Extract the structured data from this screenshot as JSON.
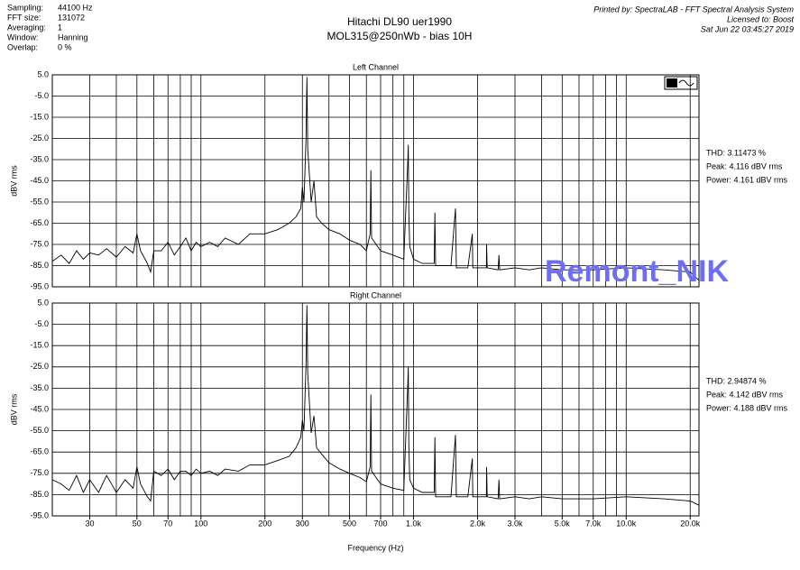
{
  "header": {
    "info_labels": [
      "Sampling:",
      "FFT size:",
      "Averaging:",
      "Window:",
      "Overlap:"
    ],
    "info_values": [
      "44100 Hz",
      "131072",
      "1",
      "Hanning",
      "0 %"
    ],
    "title": "Hitachi DL90 uer1990",
    "subtitle": "MOL315@250nWb - bias 10H",
    "printed_by": "Printed by: SpectraLAB - FFT Spectral Analysis System",
    "licensed": "Licensed to: Boost",
    "date": "Sat Jun 22 03:45:27 2019"
  },
  "watermark": "Remont_NIK",
  "chart_data": [
    {
      "type": "line",
      "title": "Left Channel",
      "ylabel": "dBV rms",
      "log_x": true,
      "grid": true,
      "annotations": [
        "THD: 3.11473 %",
        "Peak: 4.116 dBV rms",
        "Power: 4.161 dBV rms"
      ],
      "xlim": [
        20,
        22000
      ],
      "ylim": [
        -95,
        5
      ],
      "yticks": [
        {
          "value": 5,
          "label": "5.0"
        },
        {
          "value": -5,
          "label": "-5.0"
        },
        {
          "value": -15,
          "label": "-15.0"
        },
        {
          "value": -25,
          "label": "-25.0"
        },
        {
          "value": -35,
          "label": "-35.0"
        },
        {
          "value": -45,
          "label": "-45.0"
        },
        {
          "value": -55,
          "label": "-55.0"
        },
        {
          "value": -65,
          "label": "-65.0"
        },
        {
          "value": -75,
          "label": "-75.0"
        },
        {
          "value": -85,
          "label": "-85.0"
        },
        {
          "value": -95,
          "label": "-95.0"
        }
      ],
      "xgrid": [
        30,
        40,
        50,
        60,
        70,
        80,
        90,
        100,
        200,
        300,
        400,
        500,
        600,
        700,
        800,
        900,
        1000,
        2000,
        3000,
        4000,
        5000,
        6000,
        7000,
        8000,
        9000,
        10000,
        20000
      ],
      "x": [
        20,
        22,
        24,
        26,
        28,
        30,
        33,
        36,
        40,
        44,
        48,
        50,
        52,
        56,
        58,
        60,
        65,
        70,
        75,
        80,
        85,
        90,
        95,
        100,
        110,
        120,
        130,
        150,
        170,
        200,
        230,
        260,
        280,
        295,
        300,
        305,
        312,
        315,
        318,
        325,
        330,
        340,
        350,
        370,
        400,
        450,
        500,
        560,
        600,
        625,
        630,
        635,
        700,
        800,
        900,
        940,
        945,
        950,
        960,
        1000,
        1100,
        1250,
        1260,
        1270,
        1500,
        1575,
        1590,
        1800,
        1890,
        1900,
        2200,
        2205,
        2220,
        2500,
        2520,
        2540,
        3000,
        3500,
        4000,
        5000,
        7000,
        10000,
        15000,
        20000,
        22000
      ],
      "series": [
        {
          "name": "Left",
          "color": "#000000",
          "values": [
            -83,
            -80,
            -84,
            -78,
            -82,
            -79,
            -80,
            -77,
            -81,
            -76,
            -79,
            -70,
            -78,
            -84,
            -88,
            -78,
            -78,
            -74,
            -80,
            -76,
            -72,
            -78,
            -74,
            -76,
            -74,
            -76,
            -72,
            -75,
            -70,
            -70,
            -68,
            -65,
            -62,
            -58,
            -48,
            -55,
            -25,
            4,
            -30,
            -45,
            -55,
            -45,
            -62,
            -65,
            -68,
            -70,
            -73,
            -75,
            -78,
            -70,
            -40,
            -72,
            -78,
            -80,
            -82,
            -35,
            -28,
            -60,
            -76,
            -82,
            -84,
            -84,
            -60,
            -85,
            -85,
            -58,
            -86,
            -86,
            -70,
            -86,
            -86,
            -75,
            -86,
            -87,
            -80,
            -87,
            -86,
            -87,
            -86,
            -87,
            -87,
            -86,
            -87,
            -88,
            -92
          ]
        }
      ]
    },
    {
      "type": "line",
      "title": "Right Channel",
      "ylabel": "dBV rms",
      "xlabel": "Frequency (Hz)",
      "log_x": true,
      "grid": true,
      "annotations": [
        "THD: 2.94874 %",
        "Peak: 4.142 dBV rms",
        "Power: 4.188 dBV rms"
      ],
      "xlim": [
        20,
        22000
      ],
      "ylim": [
        -95,
        5
      ],
      "yticks": [
        {
          "value": 5,
          "label": "5.0"
        },
        {
          "value": -5,
          "label": "-5.0"
        },
        {
          "value": -15,
          "label": "-15.0"
        },
        {
          "value": -25,
          "label": "-25.0"
        },
        {
          "value": -35,
          "label": "-35.0"
        },
        {
          "value": -45,
          "label": "-45.0"
        },
        {
          "value": -55,
          "label": "-55.0"
        },
        {
          "value": -65,
          "label": "-65.0"
        },
        {
          "value": -75,
          "label": "-75.0"
        },
        {
          "value": -85,
          "label": "-85.0"
        },
        {
          "value": -95,
          "label": "-95.0"
        }
      ],
      "xgrid": [
        30,
        40,
        50,
        60,
        70,
        80,
        90,
        100,
        200,
        300,
        400,
        500,
        600,
        700,
        800,
        900,
        1000,
        2000,
        3000,
        4000,
        5000,
        6000,
        7000,
        8000,
        9000,
        10000,
        20000
      ],
      "xticks": [
        30,
        50,
        70,
        100,
        200,
        300,
        500,
        700,
        {
          "value": 1000,
          "label": "1.0k"
        },
        {
          "value": 2000,
          "label": "2.0k"
        },
        {
          "value": 3000,
          "label": "3.0k"
        },
        {
          "value": 5000,
          "label": "5.0k"
        },
        {
          "value": 7000,
          "label": "7.0k"
        },
        {
          "value": 10000,
          "label": "10.0k"
        },
        {
          "value": 20000,
          "label": "20.0k"
        }
      ],
      "x": [
        20,
        22,
        24,
        26,
        28,
        30,
        33,
        36,
        40,
        44,
        48,
        50,
        52,
        56,
        58,
        60,
        65,
        70,
        75,
        80,
        85,
        90,
        95,
        100,
        110,
        120,
        130,
        150,
        170,
        200,
        230,
        260,
        280,
        295,
        300,
        305,
        312,
        315,
        318,
        325,
        330,
        340,
        350,
        370,
        400,
        450,
        500,
        560,
        600,
        625,
        630,
        635,
        700,
        800,
        900,
        940,
        945,
        950,
        960,
        1000,
        1100,
        1250,
        1260,
        1270,
        1500,
        1575,
        1590,
        1800,
        1890,
        1900,
        2200,
        2205,
        2220,
        2500,
        2520,
        2540,
        3000,
        3500,
        4000,
        5000,
        7000,
        10000,
        15000,
        20000,
        22000
      ],
      "series": [
        {
          "name": "Right",
          "color": "#000000",
          "values": [
            -78,
            -80,
            -83,
            -76,
            -84,
            -78,
            -84,
            -76,
            -84,
            -78,
            -82,
            -72,
            -80,
            -86,
            -88,
            -74,
            -76,
            -73,
            -78,
            -74,
            -74,
            -76,
            -73,
            -75,
            -74,
            -76,
            -73,
            -74,
            -71,
            -71,
            -69,
            -67,
            -63,
            -58,
            -50,
            -55,
            -24,
            4,
            -28,
            -45,
            -56,
            -48,
            -63,
            -66,
            -70,
            -73,
            -75,
            -77,
            -79,
            -72,
            -38,
            -74,
            -80,
            -82,
            -83,
            -32,
            -25,
            -62,
            -78,
            -82,
            -84,
            -84,
            -58,
            -86,
            -86,
            -57,
            -86,
            -86,
            -68,
            -86,
            -86,
            -72,
            -86,
            -87,
            -78,
            -87,
            -86,
            -87,
            -86,
            -87,
            -87,
            -86,
            -87,
            -88,
            -90
          ]
        }
      ]
    }
  ]
}
